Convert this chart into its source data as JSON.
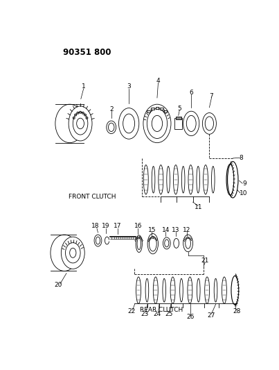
{
  "title": "90351 800",
  "background_color": "#ffffff",
  "front_clutch_label": "FRONT CLUTCH",
  "rear_clutch_label": "REAR CLUTCH"
}
